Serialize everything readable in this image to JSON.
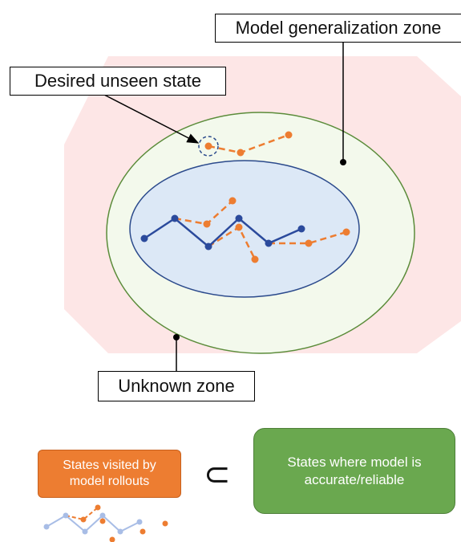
{
  "labels": {
    "generalization_zone": "Model generalization zone",
    "desired_state": "Desired unseen state",
    "unknown_zone": "Unknown zone"
  },
  "legend": {
    "rollouts": "States visited by model rollouts",
    "subset_symbol": "⊂",
    "accurate": "States where model is accurate/reliable"
  }
}
